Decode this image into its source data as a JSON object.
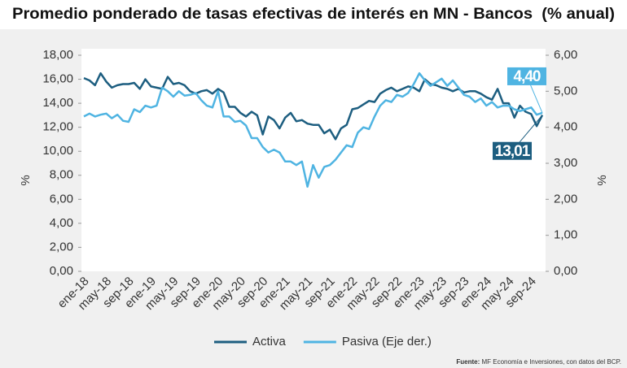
{
  "chart_data": {
    "type": "line",
    "title": "Promedio ponderado de tasas efectivas de interés en MN - Bancos  (% anual)",
    "y_label": "%",
    "y2_label": "%",
    "source_label": "Fuente:",
    "source_text": "MF Economía e Inversiones, con datos del BCP.",
    "categories": [
      "ene-18",
      null,
      null,
      null,
      "may-18",
      null,
      null,
      null,
      "sep-18",
      null,
      null,
      null,
      "ene-19",
      null,
      null,
      null,
      "may-19",
      null,
      null,
      null,
      "sep-19",
      null,
      null,
      null,
      "ene-20",
      null,
      null,
      null,
      "may-20",
      null,
      null,
      null,
      "sep-20",
      null,
      null,
      null,
      "ene-21",
      null,
      null,
      null,
      "may-21",
      null,
      null,
      null,
      "sep-21",
      null,
      null,
      null,
      "ene-22",
      null,
      null,
      null,
      "may-22",
      null,
      null,
      null,
      "sep-22",
      null,
      null,
      null,
      "ene-23",
      null,
      null,
      null,
      "may-23",
      null,
      null,
      null,
      "sep-23",
      null,
      null,
      null,
      "ene-24",
      null,
      null,
      null,
      "may-24",
      null,
      null,
      null,
      "sep-24",
      null,
      null
    ],
    "ylim": [
      0,
      18
    ],
    "yticks": [
      {
        "value": 0,
        "label": "0,00"
      },
      {
        "value": 2,
        "label": "2,00"
      },
      {
        "value": 4,
        "label": "4,00"
      },
      {
        "value": 6,
        "label": "6,00"
      },
      {
        "value": 8,
        "label": "8,00"
      },
      {
        "value": 10,
        "label": "10,00"
      },
      {
        "value": 12,
        "label": "12,00"
      },
      {
        "value": 14,
        "label": "14,00"
      },
      {
        "value": 16,
        "label": "16,00"
      },
      {
        "value": 18,
        "label": "18,00"
      }
    ],
    "y2lim": [
      0,
      6
    ],
    "y2ticks": [
      {
        "value": 0,
        "label": "0,00"
      },
      {
        "value": 1,
        "label": "1,00"
      },
      {
        "value": 2,
        "label": "2,00"
      },
      {
        "value": 3,
        "label": "3,00"
      },
      {
        "value": 4,
        "label": "4,00"
      },
      {
        "value": 5,
        "label": "5,00"
      },
      {
        "value": 6,
        "label": "6,00"
      }
    ],
    "legend": "bottom",
    "series": [
      {
        "name": "Activa",
        "color": "#1d5e80",
        "values": [
          16.1,
          15.9,
          15.5,
          16.5,
          15.8,
          15.3,
          15.5,
          15.6,
          15.6,
          15.7,
          15.2,
          16.0,
          15.4,
          15.3,
          15.2,
          16.2,
          15.6,
          15.7,
          15.5,
          15.0,
          14.8,
          15.0,
          15.1,
          14.8,
          15.2,
          14.9,
          13.7,
          13.7,
          13.2,
          12.9,
          13.3,
          13.0,
          11.4,
          12.9,
          12.6,
          11.9,
          12.8,
          13.2,
          12.5,
          12.6,
          12.3,
          12.2,
          12.2,
          11.5,
          11.8,
          11.0,
          11.9,
          12.2,
          13.5,
          13.6,
          13.9,
          14.2,
          14.1,
          14.8,
          15.1,
          15.3,
          15.0,
          15.2,
          15.4,
          15.3,
          15.0,
          16.0,
          15.6,
          15.5,
          15.3,
          15.2,
          15.0,
          15.2,
          14.9,
          15.0,
          15.0,
          14.8,
          14.5,
          14.3,
          15.2,
          14.0,
          14.0,
          12.8,
          13.8,
          13.3,
          13.1,
          12.1,
          13.01
        ],
        "value_labels": [
          null,
          null,
          null,
          null,
          null,
          null,
          null,
          null,
          null,
          null,
          null,
          null,
          null,
          null,
          null,
          null,
          null,
          null,
          null,
          null,
          null,
          null,
          null,
          null,
          null,
          null,
          null,
          null,
          null,
          null,
          null,
          null,
          null,
          null,
          null,
          null,
          null,
          null,
          null,
          null,
          null,
          null,
          null,
          null,
          null,
          null,
          null,
          null,
          null,
          null,
          null,
          null,
          null,
          null,
          null,
          null,
          null,
          null,
          null,
          null,
          null,
          null,
          null,
          null,
          null,
          null,
          null,
          null,
          null,
          null,
          null,
          null,
          null,
          null,
          null,
          null,
          null,
          null,
          null,
          null,
          null,
          null,
          "13,01"
        ]
      },
      {
        "name": "Pasiva (Eje der.)",
        "color": "#4fb4e2",
        "axis": "y2",
        "values": [
          4.3,
          4.38,
          4.3,
          4.35,
          4.38,
          4.25,
          4.35,
          4.18,
          4.15,
          4.5,
          4.42,
          4.6,
          4.55,
          4.6,
          5.1,
          5.0,
          4.85,
          5.0,
          4.88,
          4.9,
          4.95,
          4.75,
          4.6,
          4.55,
          5.0,
          4.3,
          4.3,
          4.15,
          4.18,
          4.05,
          3.7,
          3.7,
          3.45,
          3.3,
          3.38,
          3.3,
          3.05,
          3.05,
          2.95,
          3.05,
          2.35,
          2.95,
          2.6,
          2.9,
          2.95,
          3.1,
          3.3,
          3.5,
          3.45,
          3.85,
          4.0,
          3.95,
          4.3,
          4.6,
          4.75,
          4.7,
          4.9,
          4.85,
          4.95,
          5.2,
          5.5,
          5.3,
          5.15,
          5.25,
          5.35,
          5.15,
          5.3,
          5.1,
          4.9,
          4.85,
          4.7,
          4.8,
          4.6,
          4.7,
          4.55,
          4.6,
          4.6,
          4.5,
          4.45,
          4.5,
          4.55,
          4.35,
          4.4
        ],
        "value_labels": [
          null,
          null,
          null,
          null,
          null,
          null,
          null,
          null,
          null,
          null,
          null,
          null,
          null,
          null,
          null,
          null,
          null,
          null,
          null,
          null,
          null,
          null,
          null,
          null,
          null,
          null,
          null,
          null,
          null,
          null,
          null,
          null,
          null,
          null,
          null,
          null,
          null,
          null,
          null,
          null,
          null,
          null,
          null,
          null,
          null,
          null,
          null,
          null,
          null,
          null,
          null,
          null,
          null,
          null,
          null,
          null,
          null,
          null,
          null,
          null,
          null,
          null,
          null,
          null,
          null,
          null,
          null,
          null,
          null,
          null,
          null,
          null,
          null,
          null,
          null,
          null,
          null,
          null,
          null,
          null,
          null,
          null,
          "4,40"
        ]
      }
    ]
  }
}
